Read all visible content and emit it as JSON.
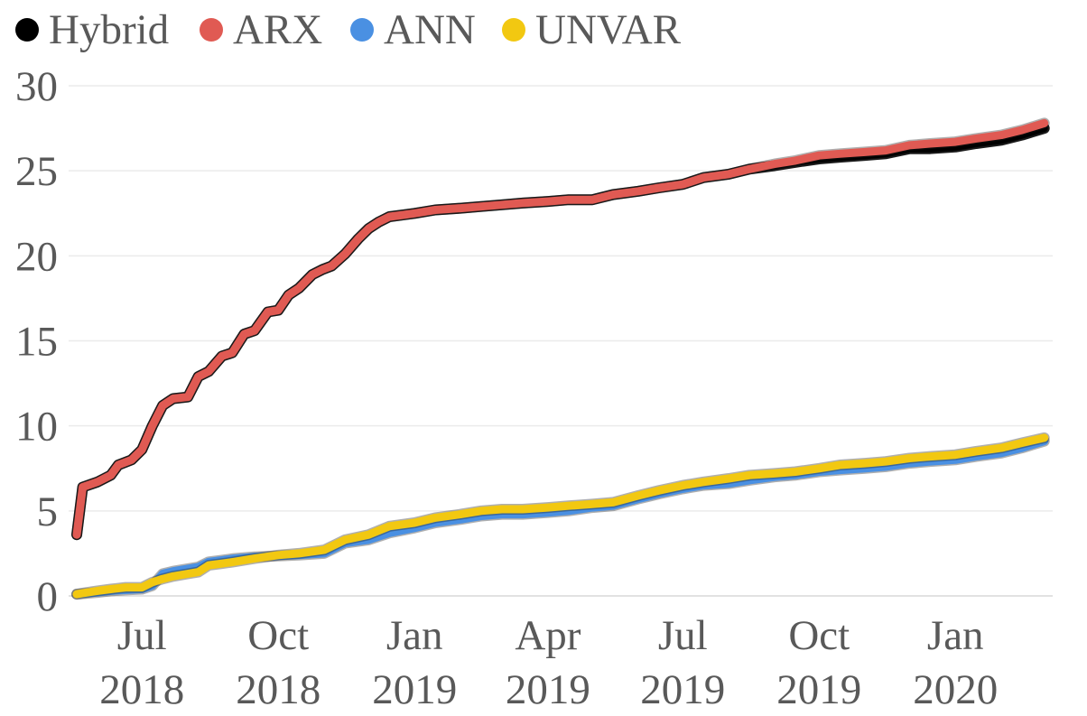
{
  "chart_data": {
    "type": "line",
    "title": "",
    "xlabel": "",
    "ylabel": "",
    "ylim": [
      0,
      30
    ],
    "xlim": [
      "2018-05-18",
      "2020-03-03"
    ],
    "grid": true,
    "legend_position": "top-left",
    "y_ticks": [
      "0",
      "5",
      "10",
      "15",
      "20",
      "25",
      "30"
    ],
    "x_ticks": [
      {
        "month": "Jul",
        "year": "2018",
        "date": "2018-07-01"
      },
      {
        "month": "Oct",
        "year": "2018",
        "date": "2018-10-01"
      },
      {
        "month": "Jan",
        "year": "2019",
        "date": "2019-01-01"
      },
      {
        "month": "Apr",
        "year": "2019",
        "date": "2019-04-01"
      },
      {
        "month": "Jul",
        "year": "2019",
        "date": "2019-07-01"
      },
      {
        "month": "Oct",
        "year": "2019",
        "date": "2019-10-01"
      },
      {
        "month": "Jan",
        "year": "2020",
        "date": "2020-01-01"
      }
    ],
    "series": [
      {
        "name": "Hybrid",
        "color": "#000000",
        "x": [
          "2018-05-18",
          "2018-05-22",
          "2018-06-01",
          "2018-06-10",
          "2018-06-15",
          "2018-06-24",
          "2018-07-01",
          "2018-07-08",
          "2018-07-15",
          "2018-07-22",
          "2018-08-01",
          "2018-08-08",
          "2018-08-15",
          "2018-08-24",
          "2018-08-31",
          "2018-09-08",
          "2018-09-15",
          "2018-09-24",
          "2018-10-01",
          "2018-10-08",
          "2018-10-15",
          "2018-10-24",
          "2018-10-31",
          "2018-11-06",
          "2018-11-15",
          "2018-11-24",
          "2018-12-01",
          "2018-12-08",
          "2018-12-15",
          "2018-12-24",
          "2019-01-01",
          "2019-01-15",
          "2019-02-01",
          "2019-02-15",
          "2019-03-01",
          "2019-03-15",
          "2019-04-01",
          "2019-04-15",
          "2019-05-01",
          "2019-05-15",
          "2019-06-01",
          "2019-06-15",
          "2019-07-01",
          "2019-07-15",
          "2019-08-01",
          "2019-08-15",
          "2019-09-01",
          "2019-09-15",
          "2019-10-01",
          "2019-10-15",
          "2019-11-01",
          "2019-11-15",
          "2019-12-01",
          "2019-12-15",
          "2020-01-01",
          "2020-01-15",
          "2020-02-01",
          "2020-02-15",
          "2020-03-01"
        ],
        "values": [
          3.6,
          6.4,
          6.7,
          7.1,
          7.7,
          8.0,
          8.6,
          10.0,
          11.2,
          11.6,
          11.7,
          12.9,
          13.2,
          14.1,
          14.3,
          15.4,
          15.6,
          16.7,
          16.8,
          17.7,
          18.1,
          18.9,
          19.2,
          19.4,
          20.1,
          21.0,
          21.6,
          22.0,
          22.3,
          22.4,
          22.5,
          22.7,
          22.8,
          22.9,
          23.0,
          23.1,
          23.2,
          23.3,
          23.3,
          23.6,
          23.8,
          24.0,
          24.2,
          24.6,
          24.8,
          25.1,
          25.3,
          25.5,
          25.7,
          25.8,
          25.9,
          26.0,
          26.3,
          26.3,
          26.4,
          26.6,
          26.8,
          27.1,
          27.5
        ]
      },
      {
        "name": "ARX",
        "color": "#E05A53",
        "x": [
          "2018-05-18",
          "2018-05-22",
          "2018-06-01",
          "2018-06-10",
          "2018-06-15",
          "2018-06-24",
          "2018-07-01",
          "2018-07-08",
          "2018-07-15",
          "2018-07-22",
          "2018-08-01",
          "2018-08-08",
          "2018-08-15",
          "2018-08-24",
          "2018-08-31",
          "2018-09-08",
          "2018-09-15",
          "2018-09-24",
          "2018-10-01",
          "2018-10-08",
          "2018-10-15",
          "2018-10-24",
          "2018-10-31",
          "2018-11-06",
          "2018-11-15",
          "2018-11-24",
          "2018-12-01",
          "2018-12-08",
          "2018-12-15",
          "2018-12-24",
          "2019-01-01",
          "2019-01-15",
          "2019-02-01",
          "2019-02-15",
          "2019-03-01",
          "2019-03-15",
          "2019-04-01",
          "2019-04-15",
          "2019-05-01",
          "2019-05-15",
          "2019-06-01",
          "2019-06-15",
          "2019-07-01",
          "2019-07-15",
          "2019-08-01",
          "2019-08-15",
          "2019-09-01",
          "2019-09-15",
          "2019-10-01",
          "2019-10-15",
          "2019-11-01",
          "2019-11-15",
          "2019-12-01",
          "2019-12-15",
          "2020-01-01",
          "2020-01-15",
          "2020-02-01",
          "2020-02-15",
          "2020-03-01"
        ],
        "values": [
          3.6,
          6.4,
          6.7,
          7.1,
          7.7,
          8.0,
          8.6,
          10.0,
          11.2,
          11.6,
          11.7,
          12.9,
          13.2,
          14.1,
          14.3,
          15.4,
          15.6,
          16.7,
          16.8,
          17.7,
          18.1,
          18.9,
          19.2,
          19.4,
          20.1,
          21.0,
          21.6,
          22.0,
          22.3,
          22.4,
          22.5,
          22.7,
          22.8,
          22.9,
          23.0,
          23.1,
          23.2,
          23.3,
          23.3,
          23.6,
          23.8,
          24.0,
          24.2,
          24.6,
          24.8,
          25.1,
          25.4,
          25.6,
          25.9,
          26.0,
          26.1,
          26.2,
          26.5,
          26.6,
          26.7,
          26.9,
          27.1,
          27.4,
          27.8
        ]
      },
      {
        "name": "ANN",
        "color": "#4A90E2",
        "x": [
          "2018-05-18",
          "2018-05-25",
          "2018-06-01",
          "2018-06-10",
          "2018-06-20",
          "2018-07-01",
          "2018-07-08",
          "2018-07-15",
          "2018-07-22",
          "2018-08-01",
          "2018-08-08",
          "2018-08-15",
          "2018-08-24",
          "2018-09-01",
          "2018-09-15",
          "2018-10-01",
          "2018-10-15",
          "2018-11-01",
          "2018-11-15",
          "2018-12-01",
          "2018-12-15",
          "2019-01-01",
          "2019-01-15",
          "2019-02-01",
          "2019-02-15",
          "2019-03-01",
          "2019-03-15",
          "2019-04-01",
          "2019-04-15",
          "2019-05-01",
          "2019-05-15",
          "2019-06-01",
          "2019-06-15",
          "2019-07-01",
          "2019-07-15",
          "2019-08-01",
          "2019-08-15",
          "2019-09-01",
          "2019-09-15",
          "2019-10-01",
          "2019-10-15",
          "2019-11-01",
          "2019-11-15",
          "2019-12-01",
          "2019-12-15",
          "2020-01-01",
          "2020-01-15",
          "2020-02-01",
          "2020-02-15",
          "2020-03-01"
        ],
        "values": [
          0.1,
          0.15,
          0.2,
          0.3,
          0.35,
          0.4,
          0.6,
          1.3,
          1.45,
          1.6,
          1.7,
          2.0,
          2.1,
          2.2,
          2.3,
          2.35,
          2.4,
          2.5,
          3.1,
          3.3,
          3.7,
          4.0,
          4.3,
          4.5,
          4.7,
          4.8,
          4.8,
          4.9,
          5.0,
          5.2,
          5.3,
          5.7,
          6.0,
          6.3,
          6.5,
          6.6,
          6.8,
          7.0,
          7.1,
          7.3,
          7.4,
          7.5,
          7.6,
          7.8,
          7.9,
          8.0,
          8.2,
          8.4,
          8.7,
          9.1
        ]
      },
      {
        "name": "UNVAR",
        "color": "#F2C811",
        "x": [
          "2018-05-18",
          "2018-05-25",
          "2018-06-01",
          "2018-06-10",
          "2018-06-20",
          "2018-07-01",
          "2018-07-08",
          "2018-07-15",
          "2018-07-22",
          "2018-08-01",
          "2018-08-08",
          "2018-08-15",
          "2018-08-24",
          "2018-09-01",
          "2018-09-15",
          "2018-10-01",
          "2018-10-15",
          "2018-11-01",
          "2018-11-15",
          "2018-12-01",
          "2018-12-15",
          "2019-01-01",
          "2019-01-15",
          "2019-02-01",
          "2019-02-15",
          "2019-03-01",
          "2019-03-15",
          "2019-04-01",
          "2019-04-15",
          "2019-05-01",
          "2019-05-15",
          "2019-06-01",
          "2019-06-15",
          "2019-07-01",
          "2019-07-15",
          "2019-08-01",
          "2019-08-15",
          "2019-09-01",
          "2019-09-15",
          "2019-10-01",
          "2019-10-15",
          "2019-11-01",
          "2019-11-15",
          "2019-12-01",
          "2019-12-15",
          "2020-01-01",
          "2020-01-15",
          "2020-02-01",
          "2020-02-15",
          "2020-03-01"
        ],
        "values": [
          0.1,
          0.2,
          0.3,
          0.4,
          0.5,
          0.5,
          0.8,
          1.0,
          1.15,
          1.3,
          1.4,
          1.8,
          1.9,
          2.0,
          2.2,
          2.4,
          2.5,
          2.7,
          3.3,
          3.6,
          4.1,
          4.3,
          4.6,
          4.8,
          5.0,
          5.1,
          5.1,
          5.2,
          5.3,
          5.4,
          5.5,
          5.9,
          6.2,
          6.5,
          6.7,
          6.9,
          7.1,
          7.2,
          7.3,
          7.5,
          7.7,
          7.8,
          7.9,
          8.1,
          8.2,
          8.3,
          8.5,
          8.7,
          9.0,
          9.3
        ]
      }
    ]
  }
}
